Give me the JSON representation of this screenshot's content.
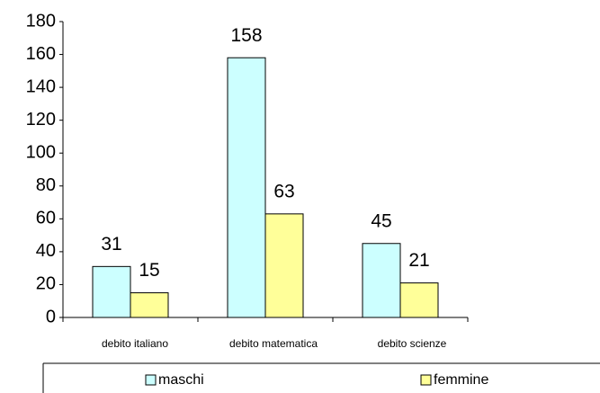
{
  "chart_data": {
    "type": "bar",
    "categories": [
      "debito italiano",
      "debito matematica",
      "debito scienze"
    ],
    "series": [
      {
        "name": "maschi",
        "color": "#ccffff",
        "values": [
          31,
          158,
          45
        ]
      },
      {
        "name": "femmine",
        "color": "#ffff99",
        "values": [
          15,
          63,
          21
        ]
      }
    ],
    "ylim": [
      0,
      180
    ],
    "yticks": [
      0,
      20,
      40,
      60,
      80,
      100,
      120,
      140,
      160,
      180
    ],
    "legend": "bottom"
  }
}
